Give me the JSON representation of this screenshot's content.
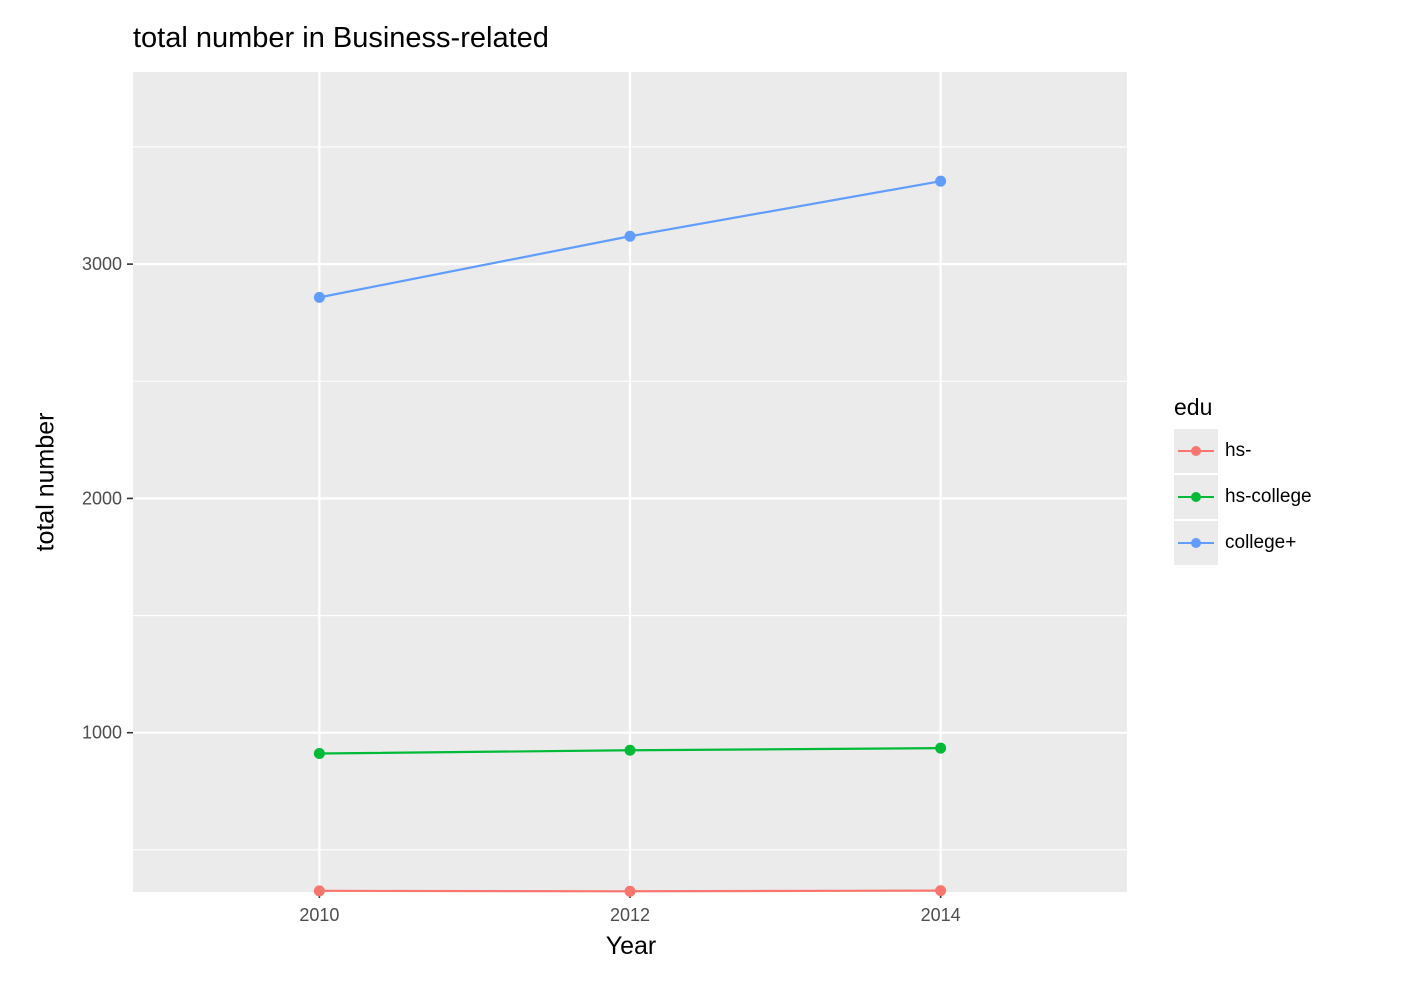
{
  "chart_data": {
    "type": "line",
    "title": "total number in Business-related",
    "xlabel": "Year",
    "ylabel": "total number",
    "x": [
      2010,
      2012,
      2014
    ],
    "x_ticks": [
      "2010",
      "2012",
      "2014"
    ],
    "y_ticks": [
      "1000",
      "2000",
      "3000"
    ],
    "xlim": [
      2008.8,
      2015.2
    ],
    "ylim": [
      320,
      3820
    ],
    "grid": true,
    "legend": {
      "title": "edu",
      "placement": "right",
      "entries": [
        "hs-",
        "hs-college",
        "college+"
      ]
    },
    "series": [
      {
        "name": "hs-",
        "color": "#F8766D",
        "values": [
          325,
          323,
          326
        ]
      },
      {
        "name": "hs-college",
        "color": "#00BA38",
        "values": [
          911,
          925,
          934
        ]
      },
      {
        "name": "college+",
        "color": "#619CFF",
        "values": [
          2858,
          3119,
          3354
        ]
      }
    ]
  }
}
